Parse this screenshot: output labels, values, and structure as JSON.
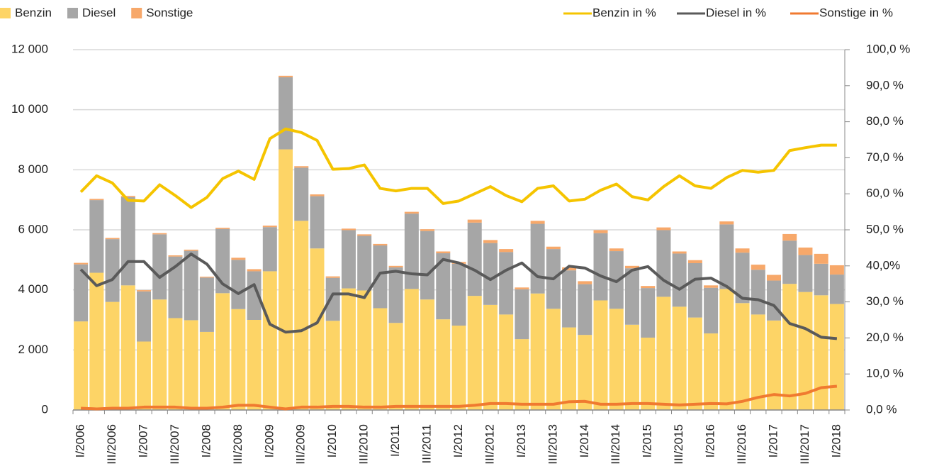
{
  "chart_data": {
    "type": "bar",
    "categories": [
      "I/2006",
      null,
      "III/2006",
      null,
      "I/2007",
      null,
      "III/2007",
      null,
      "I/2008",
      null,
      "III/2008",
      null,
      "I/2009",
      null,
      "III/2009",
      null,
      "I/2010",
      null,
      "III/2010",
      null,
      "I/2011",
      null,
      "III/2011",
      null,
      "I/2012",
      null,
      "III/2012",
      null,
      "I/2013",
      null,
      "III/2013",
      null,
      "I/2014",
      null,
      "III/2014",
      null,
      "I/2015",
      null,
      "III/2015",
      null,
      "I/2016",
      null,
      "III/2016",
      null,
      "I/2017",
      null,
      "III/2017",
      null,
      "I/2018"
    ],
    "series": [
      {
        "name": "Benzin",
        "type": "bar",
        "color": "#fdd466",
        "values": [
          2950,
          4570,
          3600,
          4150,
          2280,
          3680,
          3060,
          2990,
          2600,
          3890,
          3360,
          3000,
          4620,
          8680,
          6300,
          5380,
          2970,
          4050,
          3980,
          3390,
          2900,
          4030,
          3680,
          3020,
          2810,
          3800,
          3500,
          3180,
          2360,
          3880,
          3370,
          2750,
          2500,
          3650,
          3370,
          2840,
          2410,
          3770,
          3440,
          3080,
          2550,
          4030,
          3560,
          3180,
          2980,
          4200,
          3930,
          3820,
          3530
        ]
      },
      {
        "name": "Diesel",
        "type": "bar",
        "color": "#a6a6a6",
        "values": [
          1900,
          2420,
          2090,
          2940,
          1670,
          2170,
          2050,
          2310,
          1810,
          2140,
          1640,
          1620,
          1470,
          2400,
          1770,
          1740,
          1430,
          1940,
          1820,
          2090,
          1850,
          2510,
          2280,
          2200,
          2060,
          2440,
          2060,
          2080,
          1660,
          2320,
          1990,
          1900,
          1690,
          2240,
          1920,
          1880,
          1650,
          2220,
          1770,
          1810,
          1520,
          2150,
          1680,
          1490,
          1330,
          1440,
          1230,
          1050,
          980
        ]
      },
      {
        "name": "Sonstige",
        "type": "bar",
        "color": "#f7a86a",
        "values": [
          50,
          40,
          40,
          40,
          40,
          40,
          40,
          40,
          30,
          40,
          70,
          70,
          50,
          50,
          50,
          60,
          50,
          50,
          50,
          50,
          50,
          60,
          60,
          60,
          60,
          100,
          100,
          100,
          60,
          100,
          80,
          100,
          100,
          100,
          90,
          80,
          70,
          90,
          70,
          100,
          80,
          100,
          140,
          170,
          190,
          220,
          250,
          330,
          310
        ]
      },
      {
        "name": "Benzin in %",
        "type": "line",
        "axis": "y2",
        "color": "#f5c400",
        "values": [
          60.5,
          65,
          63,
          58.2,
          58,
          62.5,
          59.5,
          56.2,
          59,
          64.2,
          66.3,
          64,
          75.3,
          78,
          77,
          74.8,
          66.8,
          67,
          68,
          61.5,
          60.8,
          61.5,
          61.5,
          57.3,
          58,
          60,
          62,
          59.5,
          57.8,
          61.5,
          62.2,
          58,
          58.5,
          61,
          62.7,
          59.2,
          58.3,
          62,
          65,
          62.2,
          61.5,
          64.5,
          66.5,
          66,
          66.5,
          72,
          72.8,
          73.5,
          73.5
        ]
      },
      {
        "name": "Diesel in %",
        "type": "line",
        "axis": "y2",
        "color": "#5a5a5a",
        "values": [
          39,
          34.5,
          36.2,
          41.2,
          41.2,
          36.8,
          39.8,
          43.3,
          40.5,
          35,
          32.3,
          34.8,
          23.8,
          21.6,
          22,
          24.2,
          32.2,
          32.2,
          31.2,
          38,
          38.5,
          37.8,
          37.5,
          41.8,
          40.8,
          38.8,
          36.2,
          38.8,
          40.8,
          37,
          36.4,
          39.9,
          39.4,
          37.2,
          35.6,
          38.8,
          39.8,
          36,
          33.5,
          36.3,
          36.6,
          34.3,
          31,
          30.6,
          29,
          24,
          22.6,
          20.2,
          19.8
        ]
      },
      {
        "name": "Sonstige in %",
        "type": "line",
        "axis": "y2",
        "color": "#f07a30",
        "values": [
          0.5,
          0.3,
          0.5,
          0.5,
          0.8,
          0.8,
          0.8,
          0.5,
          0.5,
          0.8,
          1.3,
          1.3,
          0.8,
          0.3,
          0.8,
          0.8,
          1,
          1,
          0.8,
          0.8,
          1,
          1,
          1,
          1,
          1,
          1.3,
          1.8,
          1.8,
          1.6,
          1.6,
          1.6,
          2.3,
          2.4,
          1.6,
          1.6,
          1.8,
          1.8,
          1.6,
          1.4,
          1.6,
          1.8,
          1.7,
          2.4,
          3.5,
          4.3,
          3.9,
          4.6,
          6.2,
          6.6
        ]
      }
    ],
    "ylim": [
      0,
      12000
    ],
    "yticks": [
      0,
      {
        "value": 2000,
        "label": "2 000"
      },
      {
        "value": 4000,
        "label": "4 000"
      },
      {
        "value": 6000,
        "label": "6 000"
      },
      {
        "value": 8000,
        "label": "8 000"
      },
      {
        "value": 10000,
        "label": "10 000"
      },
      {
        "value": 12000,
        "label": "12 000"
      }
    ],
    "y2lim": [
      0,
      100
    ],
    "y2ticks": [
      {
        "value": 0,
        "label": "0,0 %"
      },
      {
        "value": 10,
        "label": "10,0 %"
      },
      {
        "value": 20,
        "label": "20,0 %"
      },
      {
        "value": 30,
        "label": "30,0 %"
      },
      {
        "value": 40,
        "label": "40,0%"
      },
      {
        "value": 50,
        "label": "50,0 %"
      },
      {
        "value": 60,
        "label": "60,0 %"
      },
      {
        "value": 70,
        "label": "70,0 %"
      },
      {
        "value": 80,
        "label": "80,0 %"
      },
      {
        "value": 90,
        "label": "90,0 %"
      },
      {
        "value": 100,
        "label": "100,0 %"
      }
    ],
    "grid": true
  }
}
